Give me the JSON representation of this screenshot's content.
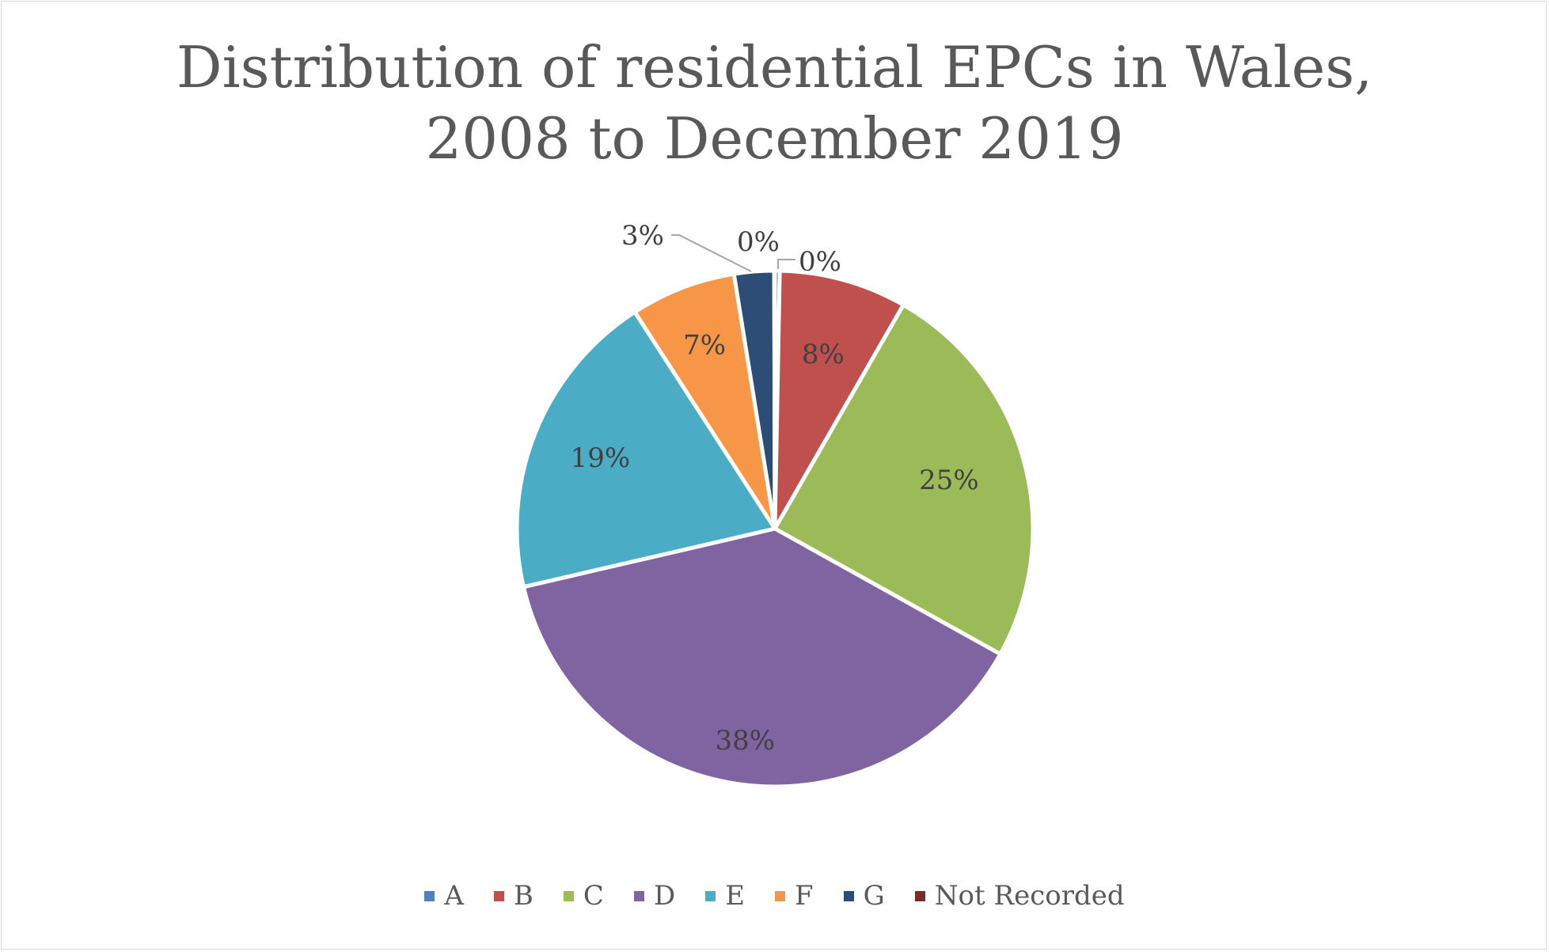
{
  "chart_data": {
    "type": "pie",
    "title": "Distribution of residential EPCs in Wales, 2008 to December 2019",
    "title_lines": [
      "Distribution of residential EPCs in Wales,",
      "2008 to December 2019"
    ],
    "categories": [
      "A",
      "B",
      "C",
      "D",
      "E",
      "F",
      "G",
      "Not Recorded"
    ],
    "values": [
      0.3,
      8.0,
      24.8,
      38.3,
      19.5,
      6.6,
      2.5,
      0.04
    ],
    "labels": [
      "0%",
      "8%",
      "25%",
      "38%",
      "19%",
      "7%",
      "3%",
      "0%"
    ],
    "colors": [
      "#4f81bd",
      "#c0504d",
      "#9bbb59",
      "#8064a2",
      "#4bacc6",
      "#f79646",
      "#2c4d75",
      "#772c2a"
    ],
    "legend_position": "bottom",
    "start_angle": "12 o'clock, clockwise"
  }
}
